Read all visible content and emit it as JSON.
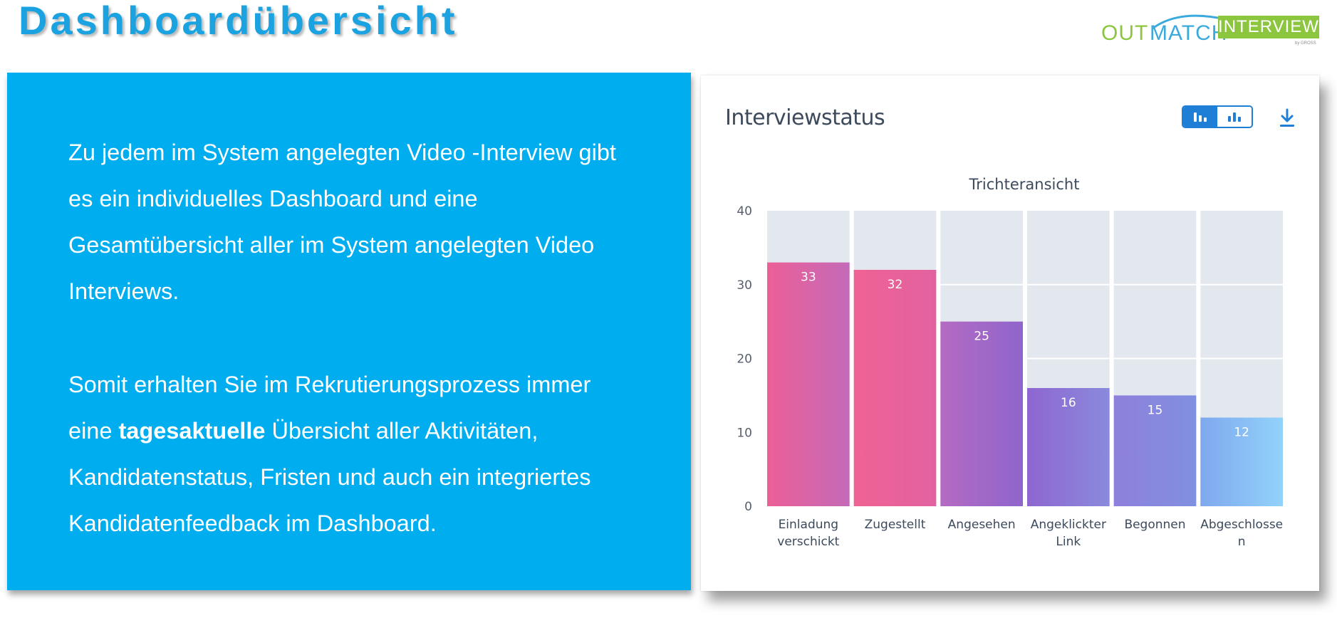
{
  "page": {
    "title": "Dashboardübersicht"
  },
  "logo": {
    "out": "OUT",
    "match": "MATCH",
    "interview": "INTERVIEW",
    "by": "by GROSS",
    "colors": {
      "green": "#8cc63f",
      "blue": "#3aa9dd"
    }
  },
  "intro": {
    "paragraph1_lines": [
      "Zu jedem im System angelegten Video -Interview gibt",
      "es ein individuelles Dashboard und eine",
      "Gesamtübersicht aller im System angelegten Video",
      "Interviews."
    ],
    "paragraph2": {
      "line1": "Somit erhalten Sie im Rekrutierungsprozess immer",
      "line2_prefix": "eine ",
      "line2_bold": "tagesaktuelle",
      "line2_suffix": " Übersicht aller Aktivitäten,",
      "line3": "Kandidatenstatus, Fristen und auch ein integriertes",
      "line4": "Kandidatenfeedback im Dashboard."
    },
    "background_color": "#00adef"
  },
  "card": {
    "title": "Interviewstatus",
    "toggle": {
      "active": "funnel-view-icon",
      "options": [
        "funnel-view-icon",
        "bar-view-icon"
      ]
    },
    "download_icon": "download-icon",
    "accent_color": "#1f7fd6"
  },
  "chart_data": {
    "type": "bar",
    "title": "Trichteransicht",
    "xlabel": "",
    "ylabel": "",
    "ylim": [
      0,
      40
    ],
    "yticks": [
      0,
      10,
      20,
      30,
      40
    ],
    "grid": true,
    "categories": [
      [
        "Einladung",
        "verschickt"
      ],
      [
        "Zugestellt"
      ],
      [
        "Angesehen"
      ],
      [
        "Angeklickter",
        "Link"
      ],
      [
        "Begonnen"
      ],
      [
        "Abgeschlosse",
        "n"
      ]
    ],
    "values": [
      33,
      32,
      25,
      16,
      15,
      12
    ],
    "background_max": 40,
    "bar_gradients": [
      [
        "#ec5f97",
        "#c46ab8"
      ],
      [
        "#ef6294",
        "#e262a0"
      ],
      [
        "#b46ac2",
        "#8f65cc"
      ],
      [
        "#8e66d0",
        "#8a8adc"
      ],
      [
        "#8e80dc",
        "#8090e0"
      ],
      [
        "#7fa8ee",
        "#92d2fa"
      ]
    ],
    "background_bar_color": "#e3e8ef"
  }
}
